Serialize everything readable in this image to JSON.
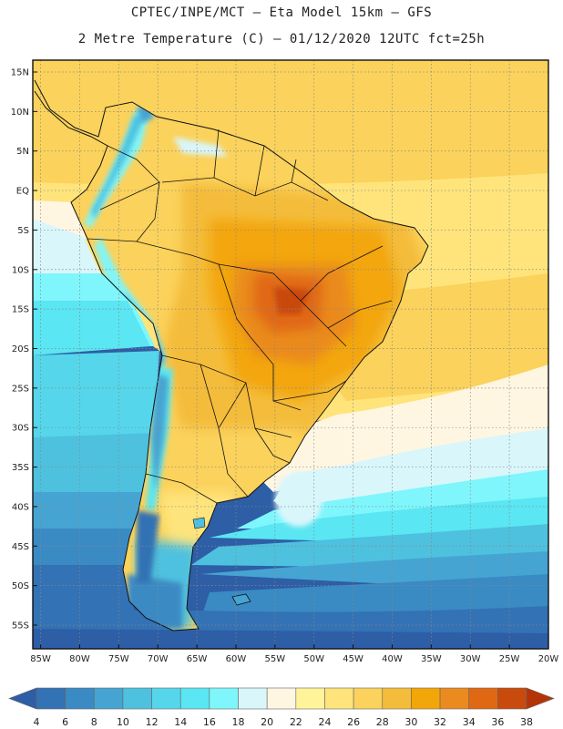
{
  "header": {
    "line1": "CPTEC/INPE/MCT –  Eta Model 15km – GFS",
    "line2": "2 Metre Temperature (C) – 01/12/2020 12UTC fct=25h"
  },
  "map": {
    "lon_labels": [
      "85W",
      "80W",
      "75W",
      "70W",
      "65W",
      "60W",
      "55W",
      "50W",
      "45W",
      "40W",
      "35W",
      "30W",
      "25W",
      "20W"
    ],
    "lon_values": [
      -85,
      -80,
      -75,
      -70,
      -65,
      -60,
      -55,
      -50,
      -45,
      -40,
      -35,
      -30,
      -25,
      -20
    ],
    "lat_labels": [
      "15N",
      "10N",
      "5N",
      "EQ",
      "5S",
      "10S",
      "15S",
      "20S",
      "25S",
      "30S",
      "35S",
      "40S",
      "45S",
      "50S",
      "55S"
    ],
    "lat_values": [
      15,
      10,
      5,
      0,
      -5,
      -10,
      -15,
      -20,
      -25,
      -30,
      -35,
      -40,
      -45,
      -50,
      -55
    ],
    "lon_range": [
      -86,
      -20
    ],
    "lat_range": [
      -58,
      16.5
    ]
  },
  "colorbar": {
    "labels": [
      "4",
      "6",
      "8",
      "10",
      "12",
      "14",
      "16",
      "18",
      "20",
      "22",
      "24",
      "26",
      "28",
      "30",
      "32",
      "34",
      "36",
      "38"
    ],
    "colors": [
      "#2d5ea6",
      "#3372b4",
      "#3a8ac4",
      "#46a4d2",
      "#4ec1df",
      "#55d6ea",
      "#5ae6f2",
      "#7ff6fb",
      "#d9f6fb",
      "#fff6e2",
      "#fff49a",
      "#fee47b",
      "#fbd25b",
      "#f4bc3b",
      "#f3a608",
      "#ea8a1f",
      "#e06812",
      "#c94a0d",
      "#b43408"
    ]
  }
}
